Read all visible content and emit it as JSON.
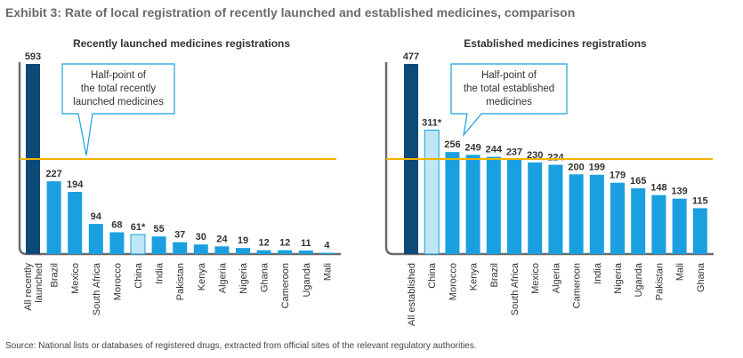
{
  "exhibit_title": "Exhibit 3: Rate of local registration of recently launched and established medicines, comparison",
  "source": "Source: National lists or databases of registered drugs, extracted from official sites of the relevant regulatory authorities.",
  "colors": {
    "total_bar": "#0d4a78",
    "country_bar": "#1aa0e0",
    "china_bar": "#bfe6f7",
    "china_border": "#1aa0e0",
    "half_line": "#f0b400",
    "axis": "#6b6b6b",
    "callout_border": "#1aa0e0"
  },
  "chart_data": [
    {
      "type": "bar",
      "title": "Recently launched medicines registrations",
      "categories": [
        "All recently launched",
        "Brazil",
        "Mexico",
        "South Africa",
        "Morocco",
        "China",
        "India",
        "Pakistan",
        "Kenya",
        "Algeria",
        "Nigeria",
        "Ghana",
        "Cameroon",
        "Uganda",
        "Mali"
      ],
      "category_lines": [
        [
          "All recently",
          "launched"
        ],
        [
          "Brazil"
        ],
        [
          "Mexico"
        ],
        [
          "South Africa"
        ],
        [
          "Morocco"
        ],
        [
          "China"
        ],
        [
          "India"
        ],
        [
          "Pakistan"
        ],
        [
          "Kenya"
        ],
        [
          "Algeria"
        ],
        [
          "Nigeria"
        ],
        [
          "Ghana"
        ],
        [
          "Cameroon"
        ],
        [
          "Uganda"
        ],
        [
          "Mali"
        ]
      ],
      "values": [
        593,
        227,
        194,
        94,
        68,
        61,
        55,
        37,
        30,
        24,
        19,
        12,
        12,
        11,
        4
      ],
      "value_labels": [
        "593",
        "227",
        "194",
        "94",
        "68",
        "61*",
        "55",
        "37",
        "30",
        "24",
        "19",
        "12",
        "12",
        "11",
        "4"
      ],
      "half_point": 296.5,
      "annotation": [
        "Half-point of",
        "the total recently",
        "launched medicines"
      ],
      "ylim": [
        0,
        593
      ]
    },
    {
      "type": "bar",
      "title": "Established medicines registrations",
      "categories": [
        "All established",
        "China",
        "Morocco",
        "Kenya",
        "Brazil",
        "South Africa",
        "Mexico",
        "Algeria",
        "Cameroon",
        "India",
        "Nigeria",
        "Uganda",
        "Pakistan",
        "Mali",
        "Ghana"
      ],
      "category_lines": [
        [
          "All established"
        ],
        [
          "China"
        ],
        [
          "Morocco"
        ],
        [
          "Kenya"
        ],
        [
          "Brazil"
        ],
        [
          "South Africa"
        ],
        [
          "Mexico"
        ],
        [
          "Algeria"
        ],
        [
          "Cameroon"
        ],
        [
          "India"
        ],
        [
          "Nigeria"
        ],
        [
          "Uganda"
        ],
        [
          "Pakistan"
        ],
        [
          "Mali"
        ],
        [
          "Ghana"
        ]
      ],
      "values": [
        477,
        311,
        256,
        249,
        244,
        237,
        230,
        224,
        200,
        199,
        179,
        165,
        148,
        139,
        115
      ],
      "value_labels": [
        "477",
        "311*",
        "256",
        "249",
        "244",
        "237",
        "230",
        "224",
        "200",
        "199",
        "179",
        "165",
        "148",
        "139",
        "115"
      ],
      "half_point": 238.5,
      "annotation": [
        "Half-point of",
        "the total established",
        "medicines"
      ],
      "ylim": [
        0,
        477
      ]
    }
  ]
}
